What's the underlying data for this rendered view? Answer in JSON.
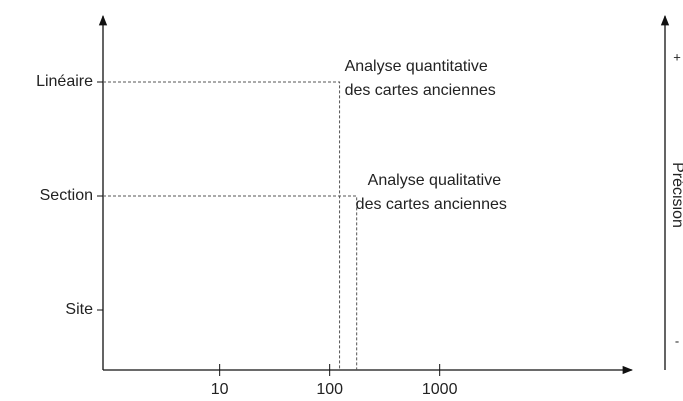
{
  "chart_data": {
    "type": "scatter",
    "xscale": "log",
    "xlim": [
      0.87,
      56000
    ],
    "xticks": [
      10,
      100,
      1000
    ],
    "categories": [
      "Site",
      "Section",
      "Linéaire"
    ],
    "points": [
      {
        "x": 123,
        "y": "Linéaire",
        "label": [
          "Analyse quantitative",
          "des cartes anciennes"
        ]
      },
      {
        "x": 176,
        "y": "Section",
        "label": [
          "Analyse qualitative",
          "des cartes anciennes"
        ]
      }
    ],
    "color": "#555555",
    "y2_label": "Précision",
    "y2_top": "+",
    "y2_bottom": "-"
  }
}
